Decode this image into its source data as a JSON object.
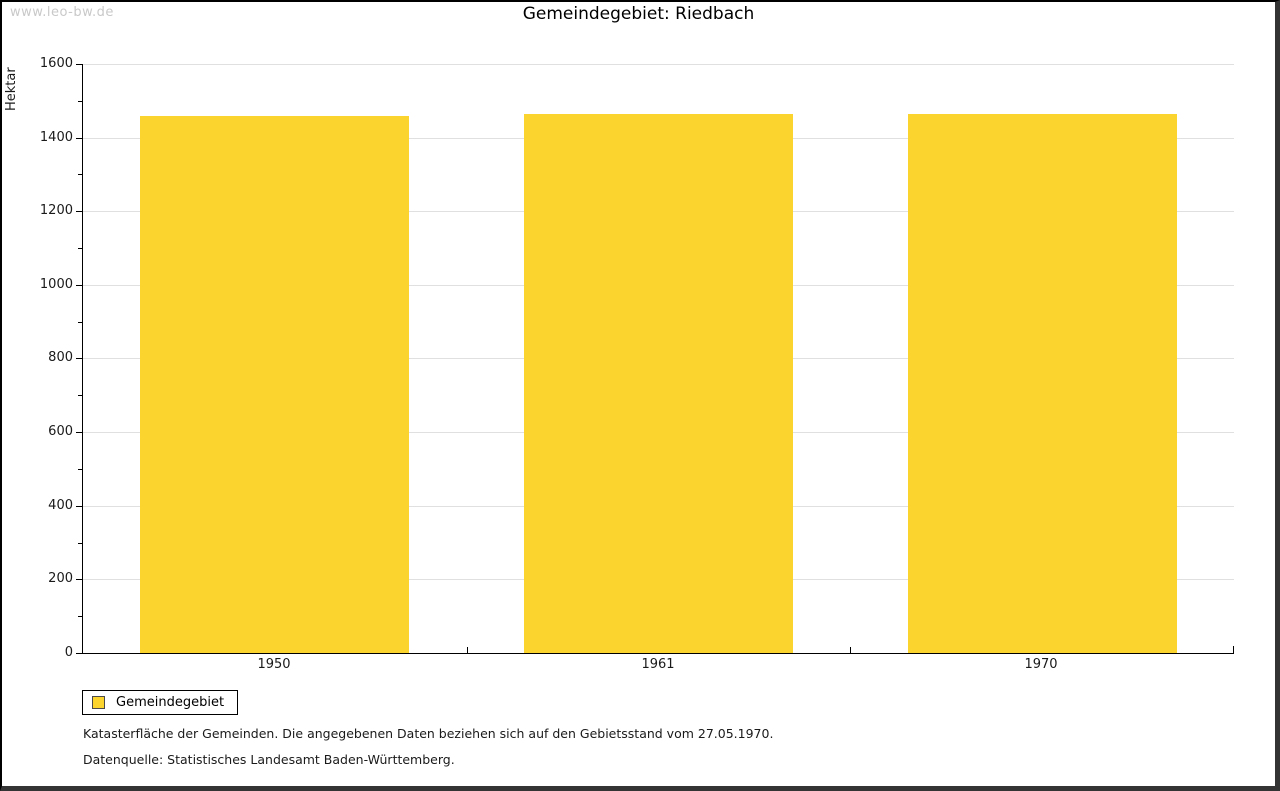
{
  "watermark": "www.leo-bw.de",
  "title": "Gemeindegebiet: Riedbach",
  "chart_data": {
    "type": "bar",
    "title": "Gemeindegebiet: Riedbach",
    "categories": [
      "1950",
      "1961",
      "1970"
    ],
    "series": [
      {
        "name": "Gemeindegebiet",
        "values": [
          1460,
          1463,
          1463
        ]
      }
    ],
    "xlabel": "",
    "ylabel": "Hektar",
    "ylim": [
      0,
      1600
    ],
    "ytick_step": 200,
    "ytick_labels": [
      "0",
      "200",
      "400",
      "600",
      "800",
      "1000",
      "1200",
      "1400",
      "1600"
    ],
    "minor_tick_step": 100,
    "grid": "horizontal-major-only",
    "bar_color": "#fcd42e",
    "legend_position": "bottom-left"
  },
  "legend": {
    "items": [
      {
        "label": "Gemeindegebiet",
        "color": "#fcd42e"
      }
    ]
  },
  "footnotes": [
    "Katasterfläche der Gemeinden. Die angegebenen Daten beziehen sich auf den Gebietsstand vom 27.05.1970.",
    "Datenquelle: Statistisches Landesamt Baden-Württemberg."
  ]
}
